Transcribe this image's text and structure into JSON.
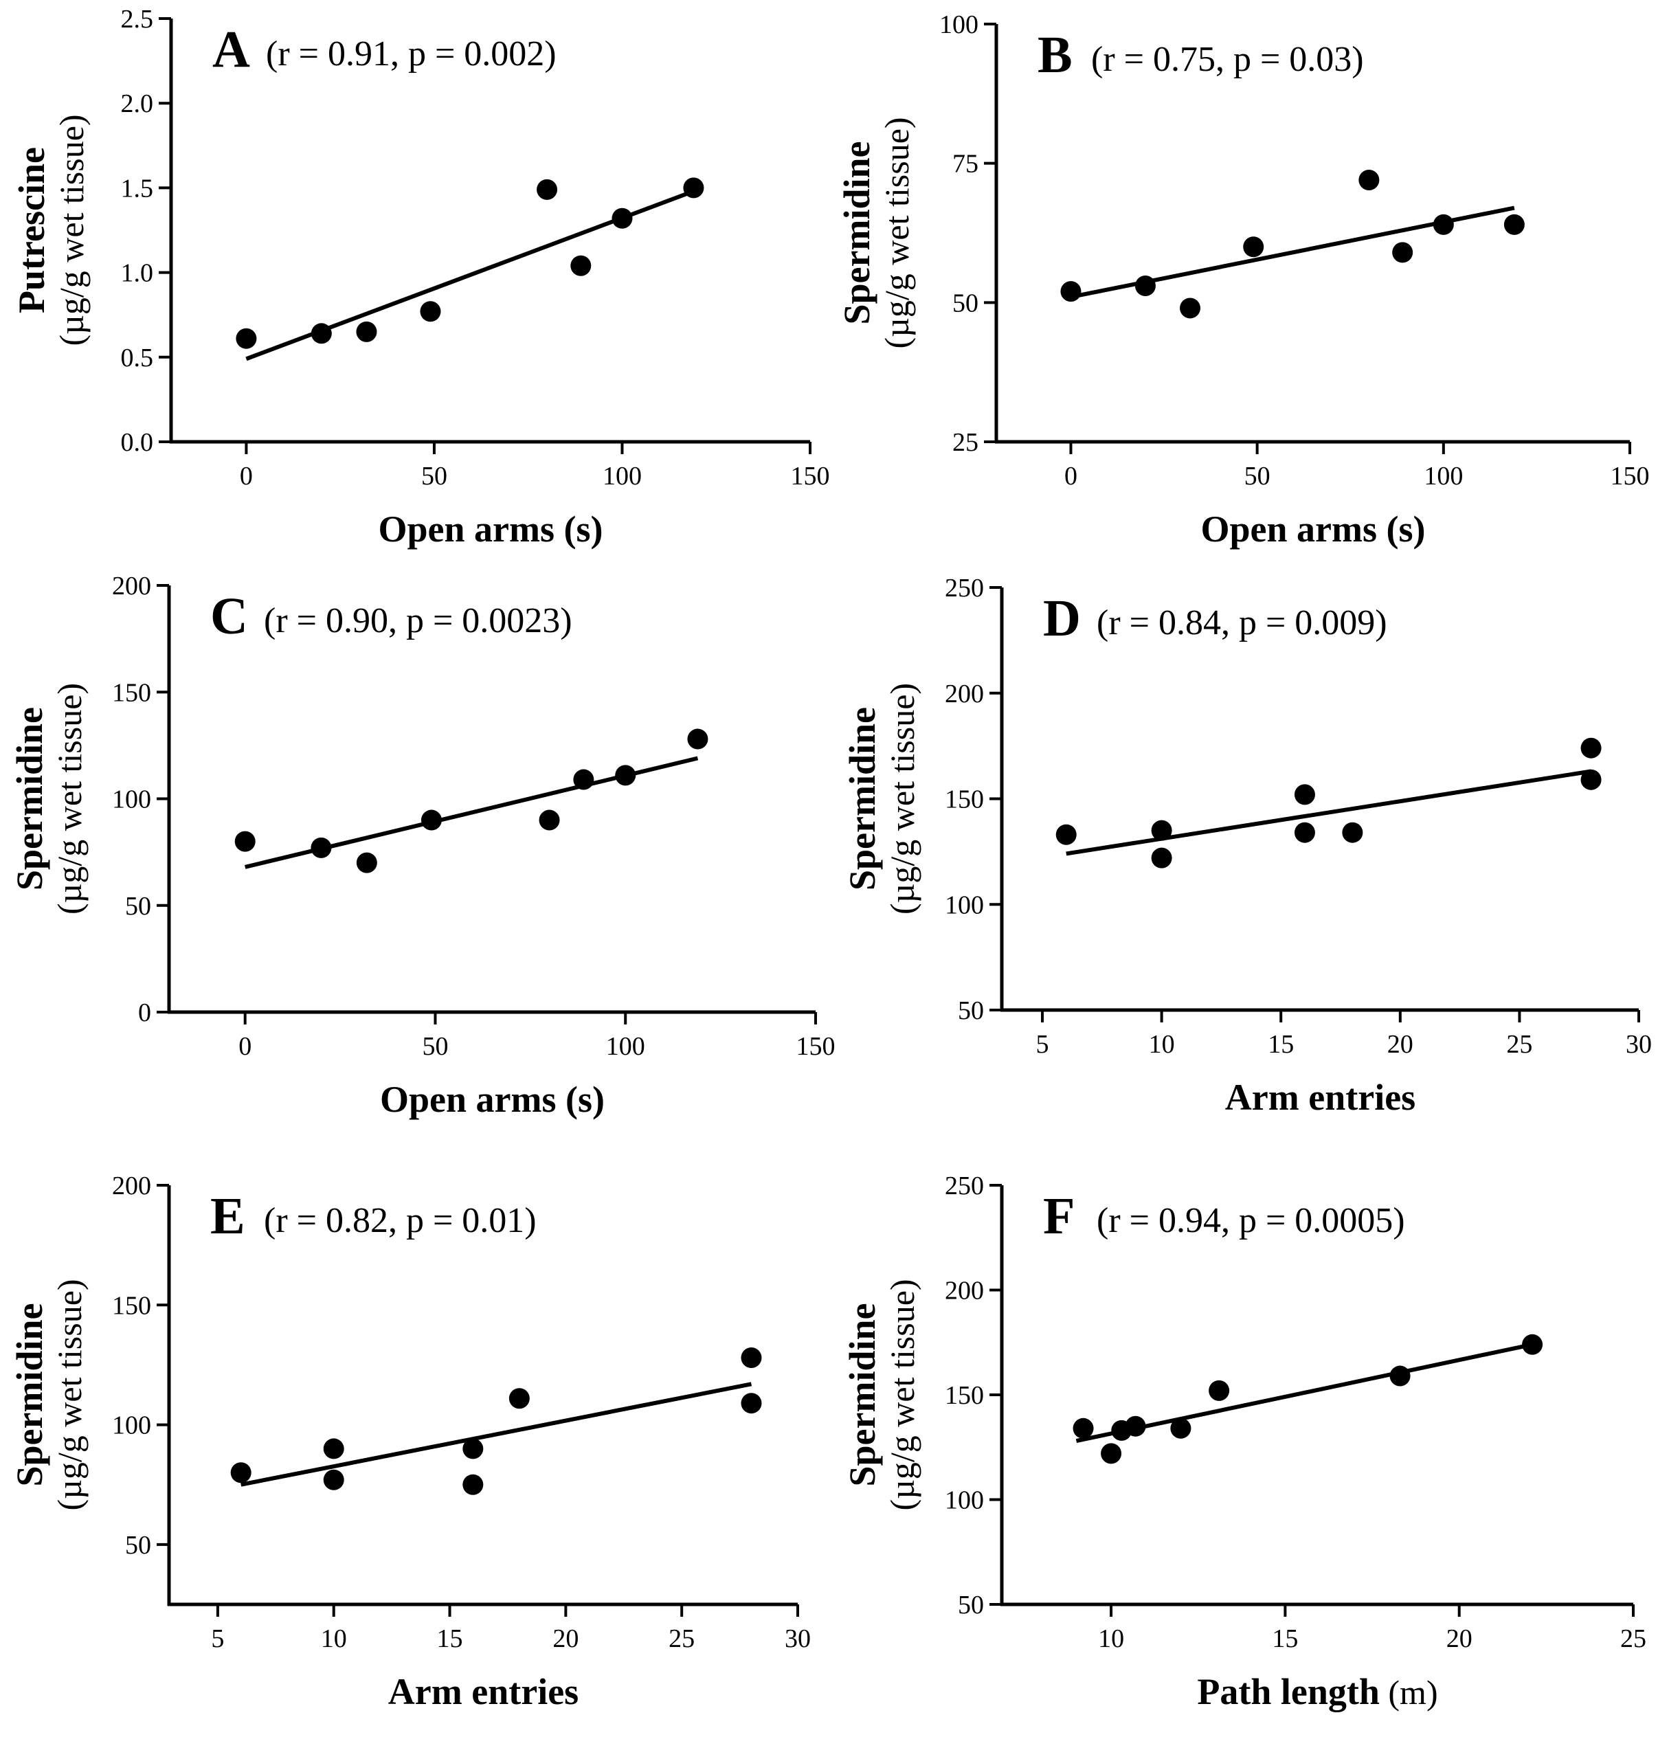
{
  "chart_data": [
    {
      "type": "scatter",
      "panel": "A",
      "stats": "(r = 0.91, p = 0.002)",
      "xlabel": "Open arms (s)",
      "xlabel_suffix": "",
      "ylabel": "Putrescine",
      "ylabel_unit": "(µg/g wet tissue)",
      "xlim": [
        -20,
        150
      ],
      "ylim": [
        0,
        2.5
      ],
      "xticks": [
        0,
        50,
        100,
        150
      ],
      "xtick_labels": [
        "0",
        "50",
        "100",
        "150"
      ],
      "yticks": [
        0,
        0.5,
        1.0,
        1.5,
        2.0,
        2.5
      ],
      "ytick_labels": [
        "0.0",
        "0.5",
        "1.0",
        "1.5",
        "2.0",
        "2.5"
      ],
      "x": [
        0,
        20,
        32,
        49,
        80,
        89,
        100,
        119
      ],
      "y": [
        0.61,
        0.64,
        0.65,
        0.77,
        1.49,
        1.04,
        1.32,
        1.5
      ],
      "fit": [
        [
          0,
          0.49
        ],
        [
          119,
          1.48
        ]
      ]
    },
    {
      "type": "scatter",
      "panel": "B",
      "stats": "(r = 0.75, p = 0.03)",
      "xlabel": "Open arms (s)",
      "xlabel_suffix": "",
      "ylabel": "Spermidine",
      "ylabel_unit": "(µg/g wet tissue)",
      "xlim": [
        -20,
        150
      ],
      "ylim": [
        25,
        100
      ],
      "xticks": [
        0,
        50,
        100,
        150
      ],
      "xtick_labels": [
        "0",
        "50",
        "100",
        "150"
      ],
      "yticks": [
        25,
        50,
        75,
        100
      ],
      "ytick_labels": [
        "25",
        "50",
        "75",
        "100"
      ],
      "x": [
        0,
        20,
        32,
        49,
        80,
        89,
        100,
        119
      ],
      "y": [
        52,
        53,
        49,
        60,
        72,
        59,
        64,
        64
      ],
      "fit": [
        [
          0,
          51
        ],
        [
          119,
          67
        ]
      ]
    },
    {
      "type": "scatter",
      "panel": "C",
      "stats": "(r = 0.90, p = 0.0023)",
      "xlabel": "Open arms (s)",
      "xlabel_suffix": "",
      "ylabel": "Spermidine",
      "ylabel_unit": "(µg/g wet tissue)",
      "xlim": [
        -20,
        150
      ],
      "ylim": [
        0,
        200
      ],
      "xticks": [
        0,
        50,
        100,
        150
      ],
      "xtick_labels": [
        "0",
        "50",
        "100",
        "150"
      ],
      "yticks": [
        0,
        50,
        100,
        150,
        200
      ],
      "ytick_labels": [
        "0",
        "50",
        "100",
        "150",
        "200"
      ],
      "x": [
        0,
        20,
        32,
        49,
        80,
        89,
        100,
        119
      ],
      "y": [
        80,
        77,
        70,
        90,
        90,
        109,
        111,
        128
      ],
      "fit": [
        [
          0,
          68
        ],
        [
          119,
          119
        ]
      ]
    },
    {
      "type": "scatter",
      "panel": "D",
      "stats": "(r = 0.84, p = 0.009)",
      "xlabel": "Arm entries",
      "xlabel_suffix": "",
      "ylabel": "Spermidine",
      "ylabel_unit": "(µg/g wet tissue)",
      "xlim": [
        3.3,
        30
      ],
      "ylim": [
        50,
        250
      ],
      "xticks": [
        5,
        10,
        15,
        20,
        25,
        30
      ],
      "xtick_labels": [
        "5",
        "10",
        "15",
        "20",
        "25",
        "30"
      ],
      "yticks": [
        50,
        100,
        150,
        200,
        250
      ],
      "ytick_labels": [
        "50",
        "100",
        "150",
        "200",
        "250"
      ],
      "x": [
        6,
        10,
        10,
        16,
        16,
        18,
        28,
        28
      ],
      "y": [
        133,
        135,
        122,
        152,
        134,
        134,
        174,
        159
      ],
      "fit": [
        [
          6,
          124
        ],
        [
          28,
          163
        ]
      ]
    },
    {
      "type": "scatter",
      "panel": "E",
      "stats": "(r = 0.82, p = 0.01)",
      "xlabel": "Arm entries",
      "xlabel_suffix": "",
      "ylabel": "Spermidine",
      "ylabel_unit": "(µg/g wet tissue)",
      "xlim": [
        2.9,
        30
      ],
      "ylim": [
        25,
        200
      ],
      "xticks": [
        5,
        10,
        15,
        20,
        25,
        30
      ],
      "xtick_labels": [
        "5",
        "10",
        "15",
        "20",
        "25",
        "30"
      ],
      "yticks": [
        50,
        100,
        150,
        200
      ],
      "ytick_labels": [
        "50",
        "100",
        "150",
        "200"
      ],
      "x": [
        6,
        10,
        10,
        16,
        16,
        18,
        28,
        28
      ],
      "y": [
        80,
        90,
        77,
        90,
        75,
        111,
        128,
        109
      ],
      "fit": [
        [
          6,
          75
        ],
        [
          28,
          117
        ]
      ]
    },
    {
      "type": "scatter",
      "panel": "F",
      "stats": "(r = 0.94, p = 0.0005)",
      "xlabel": "Path length",
      "xlabel_suffix": " (m)",
      "ylabel": "Spermidine",
      "ylabel_unit": "(µg/g wet tissue)",
      "xlim": [
        6.86,
        25
      ],
      "ylim": [
        50,
        250
      ],
      "xticks": [
        10,
        15,
        20,
        25
      ],
      "xtick_labels": [
        "10",
        "15",
        "20",
        "25"
      ],
      "yticks": [
        50,
        100,
        150,
        200,
        250
      ],
      "ytick_labels": [
        "50",
        "100",
        "150",
        "200",
        "250"
      ],
      "x": [
        9.2,
        10,
        10.3,
        10.7,
        12,
        13.1,
        18.3,
        22.1
      ],
      "y": [
        134,
        122,
        133,
        135,
        134,
        152,
        159,
        174
      ],
      "fit": [
        [
          9,
          128
        ],
        [
          22.1,
          174
        ]
      ]
    }
  ]
}
